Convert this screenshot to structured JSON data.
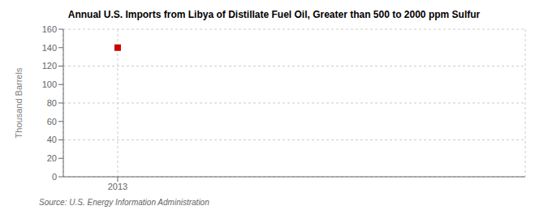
{
  "chart_data": {
    "type": "scatter",
    "title": "Annual U.S. Imports from Libya of Distillate Fuel Oil, Greater than 500 to 2000 ppm Sulfur",
    "ylabel": "Thousand Barrels",
    "annotations": [
      "Source: U.S. Energy Information Administration"
    ],
    "x": [
      2013
    ],
    "values": [
      140
    ],
    "color": "#cc0000",
    "marker": "square",
    "xlim": [
      2012.6,
      2016.0
    ],
    "xticks": [
      2013
    ],
    "ylim": [
      0,
      160
    ],
    "yticks": [
      0,
      20,
      40,
      60,
      80,
      100,
      120,
      140,
      160
    ],
    "grid": true
  }
}
